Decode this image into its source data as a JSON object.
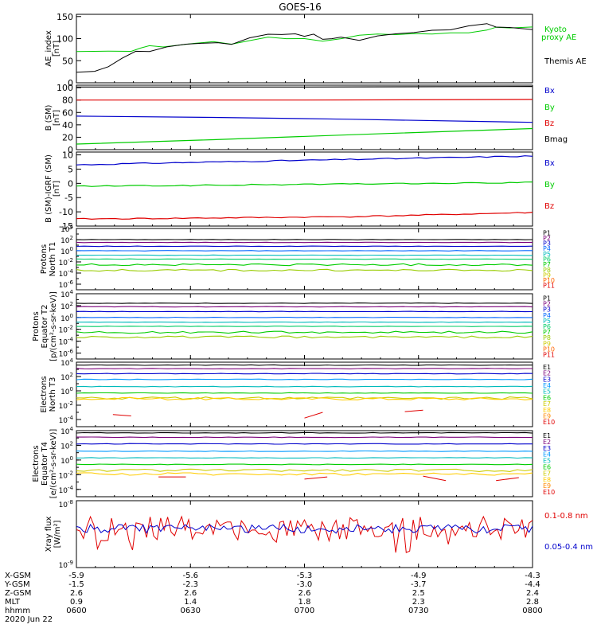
{
  "title": "GOES-16",
  "colors": {
    "black": "#000000",
    "red": "#e00000",
    "green": "#00cc00",
    "blue": "#0000cc",
    "p_colors": [
      "#000000",
      "#7a007a",
      "#0000cc",
      "#0066ff",
      "#00bbbb",
      "#00cc66",
      "#00cc00",
      "#99cc00",
      "#cccc00",
      "#ff6600",
      "#e00000"
    ],
    "e_colors": [
      "#000000",
      "#7a007a",
      "#0000cc",
      "#0099ff",
      "#00bbbb",
      "#00cc00",
      "#cccc00",
      "#ffcc00",
      "#ff8800",
      "#e00000"
    ]
  },
  "chart_data": [
    {
      "type": "line",
      "ylabel": "AE_index [nT]",
      "yticks": [
        "0",
        "50",
        "100",
        "150"
      ],
      "ylim": [
        0,
        155
      ],
      "series": [
        {
          "name": "Kyoto proxy AE",
          "color": "green",
          "x": [
            0,
            0.07,
            0.12,
            0.14,
            0.16,
            0.19,
            0.22,
            0.26,
            0.3,
            0.34,
            0.38,
            0.42,
            0.46,
            0.5,
            0.54,
            0.58,
            0.62,
            0.66,
            0.7,
            0.74,
            0.78,
            0.82,
            0.86,
            0.9,
            0.92,
            0.95,
            1.0
          ],
          "values": [
            70,
            70,
            72,
            80,
            85,
            80,
            86,
            90,
            92,
            88,
            95,
            102,
            98,
            100,
            95,
            100,
            108,
            110,
            110,
            110,
            112,
            112,
            115,
            120,
            126,
            124,
            126
          ]
        },
        {
          "name": "Themis AE",
          "color": "black",
          "x": [
            0,
            0.04,
            0.07,
            0.1,
            0.13,
            0.16,
            0.2,
            0.24,
            0.28,
            0.31,
            0.34,
            0.38,
            0.42,
            0.45,
            0.48,
            0.5,
            0.52,
            0.54,
            0.56,
            0.58,
            0.62,
            0.66,
            0.7,
            0.74,
            0.78,
            0.82,
            0.86,
            0.9,
            0.92,
            0.95,
            1.0
          ],
          "values": [
            22,
            25,
            35,
            55,
            70,
            72,
            80,
            88,
            90,
            92,
            86,
            100,
            108,
            110,
            112,
            105,
            110,
            98,
            100,
            102,
            96,
            108,
            110,
            114,
            118,
            120,
            128,
            132,
            126,
            124,
            122
          ]
        }
      ],
      "legend": [
        "Kyoto",
        "proxy AE",
        "Themis AE"
      ]
    },
    {
      "type": "line",
      "ylabel": "B (SM) [nT]",
      "yticks": [
        "0",
        "20",
        "40",
        "60",
        "80",
        "100"
      ],
      "ylim": [
        0,
        100
      ],
      "series": [
        {
          "name": "Bx",
          "color": "blue",
          "x": [
            0,
            0.3,
            0.6,
            1.0
          ],
          "values": [
            54,
            52,
            49,
            44
          ]
        },
        {
          "name": "By",
          "color": "green",
          "x": [
            0,
            0.3,
            0.6,
            1.0
          ],
          "values": [
            9,
            16,
            24,
            34
          ]
        },
        {
          "name": "Bz",
          "color": "red",
          "x": [
            0,
            0.5,
            1.0
          ],
          "values": [
            80,
            80,
            81
          ]
        },
        {
          "name": "Bmag",
          "color": "black",
          "x": [
            0,
            0.5,
            1.0
          ],
          "values": [
            101,
            101,
            102
          ]
        }
      ],
      "legend": [
        "Bx",
        "By",
        "Bz",
        "Bmag"
      ]
    },
    {
      "type": "line",
      "ylabel": "B (SM)-IGRF (SM) [nT]",
      "yticks": [
        "-15",
        "-10",
        "-5",
        "0",
        "5",
        "10"
      ],
      "ylim": [
        -15,
        11
      ],
      "series": [
        {
          "name": "Bx",
          "color": "blue",
          "x": [
            0,
            0.2,
            0.4,
            0.6,
            0.8,
            1.0
          ],
          "values": [
            6.5,
            7.2,
            7.8,
            8.4,
            9.0,
            9.6
          ]
        },
        {
          "name": "By",
          "color": "green",
          "x": [
            0,
            0.2,
            0.4,
            0.6,
            0.8,
            1.0
          ],
          "values": [
            -1.0,
            -0.8,
            -0.5,
            -0.2,
            0.0,
            0.3
          ]
        },
        {
          "name": "Bz",
          "color": "red",
          "x": [
            0,
            0.2,
            0.4,
            0.6,
            0.8,
            1.0
          ],
          "values": [
            -12.5,
            -12.3,
            -12.0,
            -11.7,
            -11.0,
            -10.2
          ]
        }
      ],
      "legend": [
        "Bx",
        "By",
        "Bz"
      ]
    },
    {
      "type": "line",
      "ylabel": "Protons North T1",
      "log": true,
      "ylim_exp": [
        -7,
        4
      ],
      "yticks": [
        "10^4",
        "10^2",
        "10^0",
        "10^-2",
        "10^-4",
        "10^-6"
      ],
      "channels": [
        "P1",
        "P2",
        "P3",
        "P4",
        "P5",
        "P6",
        "P7",
        "P8",
        "P9",
        "P10",
        "P11"
      ],
      "levels_exp": [
        2.0,
        1.5,
        0.8,
        0.0,
        -0.8,
        -1.5,
        -2.5,
        -3.5,
        null,
        null,
        null
      ]
    },
    {
      "type": "line",
      "ylabel": "Protons Equator T2",
      "unit": "[p/(cm²-s-sr-keV)]",
      "log": true,
      "ylim_exp": [
        -7,
        4
      ],
      "yticks": [
        "10^4",
        "10^2",
        "10^0",
        "10^-2",
        "10^-4",
        "10^-6"
      ],
      "channels": [
        "P1",
        "P2",
        "P3",
        "P4",
        "P5",
        "P6",
        "P7",
        "P8",
        "P9",
        "P10",
        "P11"
      ],
      "levels_exp": [
        2.4,
        1.8,
        1.0,
        0.0,
        -0.8,
        -1.5,
        -2.5,
        -3.3,
        null,
        null,
        null
      ]
    },
    {
      "type": "line",
      "ylabel": "Electrons North T3",
      "log": true,
      "ylim_exp": [
        -5,
        4
      ],
      "yticks": [
        "10^4",
        "10^2",
        "10^0",
        "10^-2",
        "10^-4"
      ],
      "channels": [
        "E1",
        "E2",
        "E3",
        "E4",
        "E5",
        "E6",
        "E7",
        "E8",
        "E9",
        "E10"
      ],
      "levels_exp": [
        3.6,
        3.1,
        2.4,
        1.6,
        0.6,
        -0.3,
        -1.0,
        -1.1,
        null,
        null
      ]
    },
    {
      "type": "line",
      "ylabel": "Electrons Equator T4",
      "unit": "[e/(cm²-s-sr-keV)]",
      "log": true,
      "ylim_exp": [
        -5,
        4
      ],
      "yticks": [
        "10^4",
        "10^2",
        "10^0",
        "10^-2",
        "10^-4"
      ],
      "channels": [
        "E1",
        "E2",
        "E3",
        "E4",
        "E5",
        "E6",
        "E7",
        "E8",
        "E9",
        "E10"
      ],
      "levels_exp": [
        3.7,
        3.1,
        2.2,
        1.2,
        0.3,
        -0.6,
        -1.4,
        -1.9,
        null,
        null
      ]
    },
    {
      "type": "line",
      "ylabel": "Xray flux [W/m²]",
      "log": true,
      "ylim_exp": [
        -9,
        -8
      ],
      "yticks": [
        "10^-8",
        "10^-9"
      ],
      "series": [
        {
          "name": "0.1-0.8 nm",
          "color": "red"
        },
        {
          "name": "0.05-0.4 nm",
          "color": "blue"
        }
      ],
      "legend": [
        "0.1-0.8 nm",
        "0.05-0.4 nm"
      ]
    }
  ],
  "axis_table": {
    "labels": [
      "X-GSM",
      "Y-GSM",
      "Z-GSM",
      "MLT",
      "hhmm",
      "2020 Jun 22"
    ],
    "columns": [
      [
        "-5.9",
        "-1.5",
        "2.6",
        "0.9",
        "0600"
      ],
      [
        "-5.6",
        "-2.3",
        "2.6",
        "1.4",
        "0630"
      ],
      [
        "-5.3",
        "-3.0",
        "2.6",
        "1.8",
        "0700"
      ],
      [
        "-4.9",
        "-3.7",
        "2.5",
        "2.3",
        "0730"
      ],
      [
        "-4.3",
        "-4.4",
        "2.4",
        "2.8",
        "0800"
      ]
    ]
  }
}
